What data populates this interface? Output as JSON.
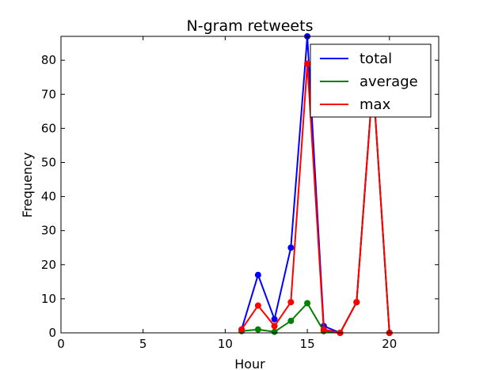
{
  "chart_data": {
    "type": "line",
    "title": "N-gram retweets",
    "xlabel": "Hour",
    "ylabel": "Frequency",
    "xlim": [
      0,
      23
    ],
    "ylim": [
      0,
      87
    ],
    "xticks": [
      0,
      5,
      10,
      15,
      20
    ],
    "yticks": [
      0,
      10,
      20,
      30,
      40,
      50,
      60,
      70,
      80
    ],
    "grid": false,
    "legend_position": "top-right",
    "series": [
      {
        "name": "total",
        "color": "#0000ff",
        "x": [
          11,
          12,
          13,
          14,
          15,
          16,
          17,
          18,
          19,
          20
        ],
        "y": [
          1,
          17,
          4,
          25,
          87,
          2,
          0,
          9,
          74,
          0
        ]
      },
      {
        "name": "average",
        "color": "#008000",
        "x": [
          11,
          12,
          13,
          14,
          15,
          16,
          17,
          18,
          19,
          20
        ],
        "y": [
          0.5,
          1,
          0.3,
          3.5,
          8.7,
          0.5,
          0,
          9,
          74,
          0
        ]
      },
      {
        "name": "max",
        "color": "#ff0000",
        "x": [
          11,
          12,
          13,
          14,
          15,
          16,
          17,
          18,
          19,
          20
        ],
        "y": [
          1,
          8,
          2,
          9,
          79,
          1,
          0,
          9,
          74,
          0
        ]
      }
    ]
  }
}
